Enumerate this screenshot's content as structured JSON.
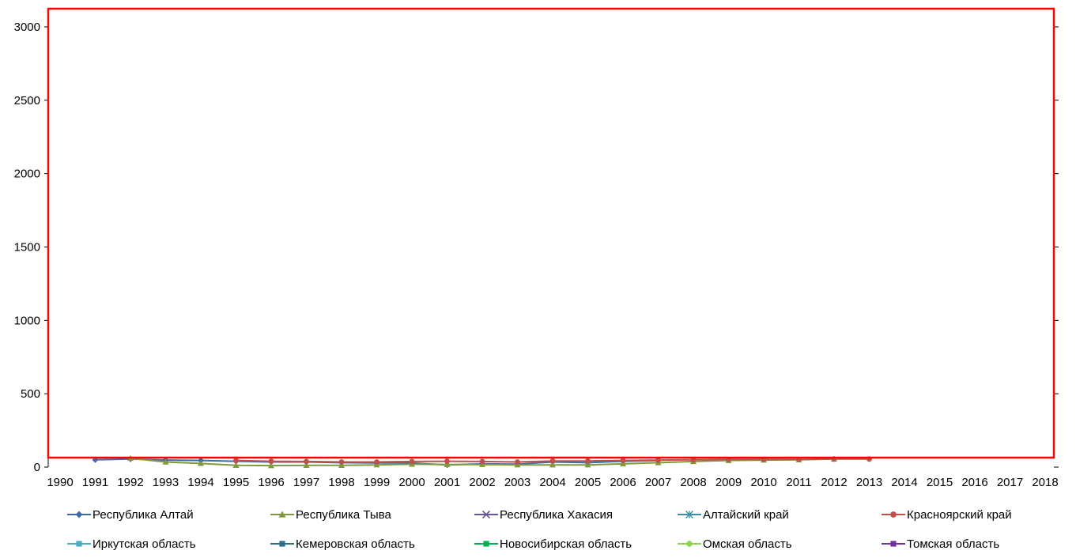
{
  "chart_data": {
    "type": "line",
    "title": "",
    "xlabel": "",
    "ylabel": "",
    "x": [
      "1990",
      "1991",
      "1992",
      "1993",
      "1994",
      "1995",
      "1996",
      "1997",
      "1998",
      "1999",
      "2000",
      "2001",
      "2002",
      "2003",
      "2004",
      "2005",
      "2006",
      "2007",
      "2008",
      "2009",
      "2010",
      "2011",
      "2012",
      "2013",
      "2014",
      "2015",
      "2016",
      "2017",
      "2018"
    ],
    "ylim": [
      0,
      3000
    ],
    "yticks": [
      "0",
      "500",
      "1000",
      "1500",
      "2000",
      "2500",
      "3000"
    ],
    "grid": false,
    "legend_position": "bottom",
    "highlight_box_color": "#ff0000",
    "series": [
      {
        "name": "Республика Алтай",
        "color": "#3b6ea8",
        "marker": "diamond",
        "values": [
          null,
          50,
          55,
          48,
          45,
          40,
          35,
          35,
          30,
          28,
          28,
          15,
          22,
          20,
          35,
          30,
          40,
          45,
          null,
          null,
          null,
          null,
          null,
          null,
          null,
          null,
          null,
          null,
          null
        ]
      },
      {
        "name": "Республика Тыва",
        "color": "#7f9a3c",
        "marker": "triangle",
        "values": [
          null,
          null,
          60,
          35,
          25,
          12,
          10,
          12,
          12,
          15,
          20,
          18,
          18,
          15,
          15,
          15,
          22,
          30,
          38,
          45,
          48,
          50,
          55,
          null,
          null,
          null,
          null,
          null,
          null
        ]
      },
      {
        "name": "Республика Хакасия",
        "color": "#6b5594",
        "marker": "x",
        "values": [
          null,
          null,
          null,
          null,
          null,
          null,
          null,
          null,
          null,
          null,
          null,
          null,
          null,
          null,
          null,
          null,
          null,
          null,
          null,
          null,
          null,
          null,
          null,
          null,
          null,
          null,
          null,
          null,
          null
        ]
      },
      {
        "name": "Алтайский край",
        "color": "#3d8fa6",
        "marker": "star",
        "values": [
          null,
          null,
          null,
          null,
          null,
          null,
          null,
          null,
          null,
          null,
          null,
          null,
          null,
          null,
          null,
          null,
          null,
          null,
          null,
          null,
          null,
          null,
          null,
          null,
          null,
          null,
          null,
          null,
          null
        ]
      },
      {
        "name": "Красноярский край",
        "color": "#c0504d",
        "marker": "circle",
        "values": [
          null,
          null,
          null,
          null,
          null,
          45,
          40,
          38,
          35,
          35,
          38,
          40,
          38,
          35,
          42,
          42,
          45,
          48,
          50,
          52,
          52,
          52,
          55,
          55,
          null,
          null,
          null,
          null,
          null
        ]
      },
      {
        "name": "Иркутская область",
        "color": "#4bacc6",
        "marker": "square",
        "values": [
          null,
          null,
          null,
          null,
          null,
          null,
          null,
          null,
          null,
          null,
          null,
          null,
          null,
          null,
          null,
          null,
          null,
          null,
          null,
          null,
          null,
          null,
          null,
          null,
          null,
          null,
          null,
          null,
          null
        ]
      },
      {
        "name": "Кемеровская область",
        "color": "#2e6f85",
        "marker": "square",
        "values": [
          null,
          null,
          null,
          null,
          null,
          null,
          null,
          null,
          null,
          null,
          null,
          null,
          null,
          null,
          null,
          null,
          null,
          null,
          null,
          null,
          null,
          null,
          null,
          null,
          null,
          null,
          null,
          null,
          null
        ]
      },
      {
        "name": "Новосибирская область",
        "color": "#00b050",
        "marker": "square",
        "values": [
          null,
          null,
          null,
          null,
          null,
          null,
          null,
          null,
          null,
          null,
          null,
          null,
          null,
          null,
          null,
          null,
          null,
          null,
          null,
          null,
          null,
          null,
          null,
          null,
          null,
          null,
          null,
          null,
          null
        ]
      },
      {
        "name": "Омская область",
        "color": "#92d050",
        "marker": "circle",
        "values": [
          null,
          null,
          null,
          null,
          null,
          null,
          null,
          null,
          null,
          null,
          null,
          null,
          null,
          null,
          null,
          null,
          null,
          null,
          null,
          null,
          null,
          null,
          null,
          null,
          null,
          null,
          null,
          null,
          null
        ]
      },
      {
        "name": "Томская область",
        "color": "#7030a0",
        "marker": "square",
        "values": [
          null,
          null,
          null,
          null,
          null,
          null,
          null,
          null,
          null,
          null,
          null,
          null,
          null,
          null,
          null,
          null,
          null,
          null,
          null,
          null,
          null,
          null,
          null,
          null,
          null,
          null,
          null,
          null,
          null
        ]
      }
    ]
  }
}
